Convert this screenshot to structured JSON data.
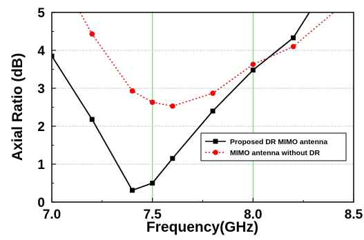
{
  "chart_data": {
    "type": "line",
    "xlabel": "Frequency(GHz)",
    "ylabel": "Axial Ratio (dB)",
    "xlim": [
      7.0,
      8.5
    ],
    "ylim": [
      0,
      5
    ],
    "x_ticks": [
      "7.0",
      "7.5",
      "8.0",
      "8.5"
    ],
    "y_ticks": [
      "0",
      "1",
      "2",
      "3",
      "4",
      "5"
    ],
    "x_gridlines": [
      7.5,
      8.0
    ],
    "y_gridlines": [
      1,
      2,
      3,
      4
    ],
    "legend_position": "right",
    "series": [
      {
        "name": "Proposed DR MIMO antenna",
        "color": "#000000",
        "line_style": "solid",
        "marker": "square",
        "x": [
          7.0,
          7.2,
          7.4,
          7.5,
          7.6,
          7.8,
          8.0,
          8.2,
          8.28
        ],
        "y": [
          3.85,
          2.18,
          0.31,
          0.5,
          1.15,
          2.4,
          3.48,
          4.33,
          5.0
        ],
        "marker_count": 8
      },
      {
        "name": "MIMO antenna without DR",
        "color": "#ff0000",
        "line_style": "dotted",
        "marker": "circle",
        "x": [
          7.14,
          7.2,
          7.4,
          7.5,
          7.6,
          7.8,
          8.0,
          8.2,
          8.4
        ],
        "y": [
          5.0,
          4.43,
          2.93,
          2.63,
          2.53,
          2.87,
          3.63,
          4.1,
          5.0
        ],
        "marker_start": 1,
        "marker_count": 7
      }
    ]
  }
}
